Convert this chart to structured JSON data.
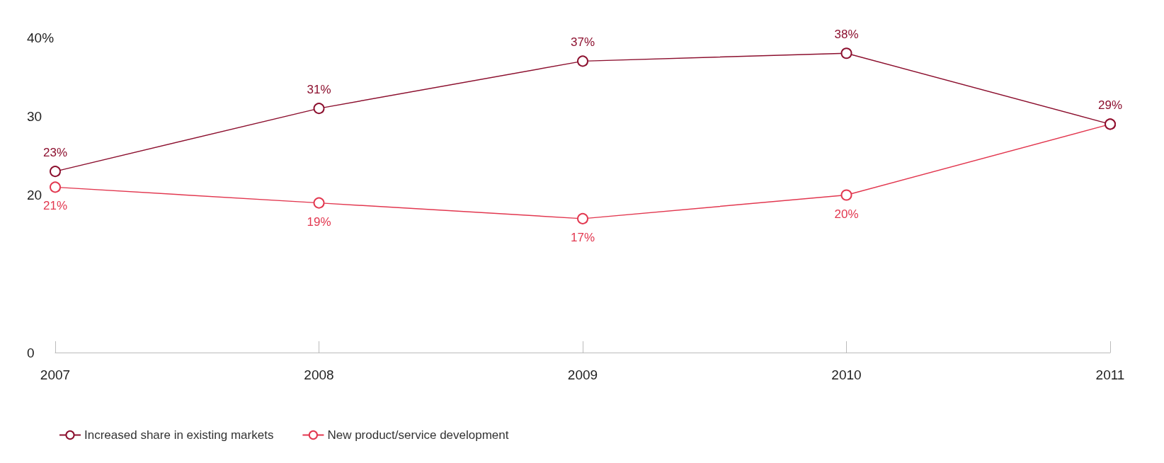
{
  "chart_data": {
    "type": "line",
    "categories": [
      "2007",
      "2008",
      "2009",
      "2010",
      "2011"
    ],
    "series": [
      {
        "name": "Increased share in existing markets",
        "color": "#8c0f2e",
        "values": [
          23,
          31,
          37,
          38,
          29
        ],
        "value_labels": [
          "23%",
          "31%",
          "37%",
          "38%",
          "29%"
        ]
      },
      {
        "name": "New product/service development",
        "color": "#e2374f",
        "values": [
          21,
          19,
          17,
          20,
          29
        ],
        "value_labels": [
          "21%",
          "19%",
          "17%",
          "20%",
          null
        ]
      }
    ],
    "ylim": [
      0,
      40
    ],
    "yticks": [
      0,
      20,
      30,
      {
        "value": 40,
        "label": "40%"
      }
    ],
    "grid": false,
    "legend": "bottom left",
    "marker": "circle",
    "line_style": "solid"
  }
}
